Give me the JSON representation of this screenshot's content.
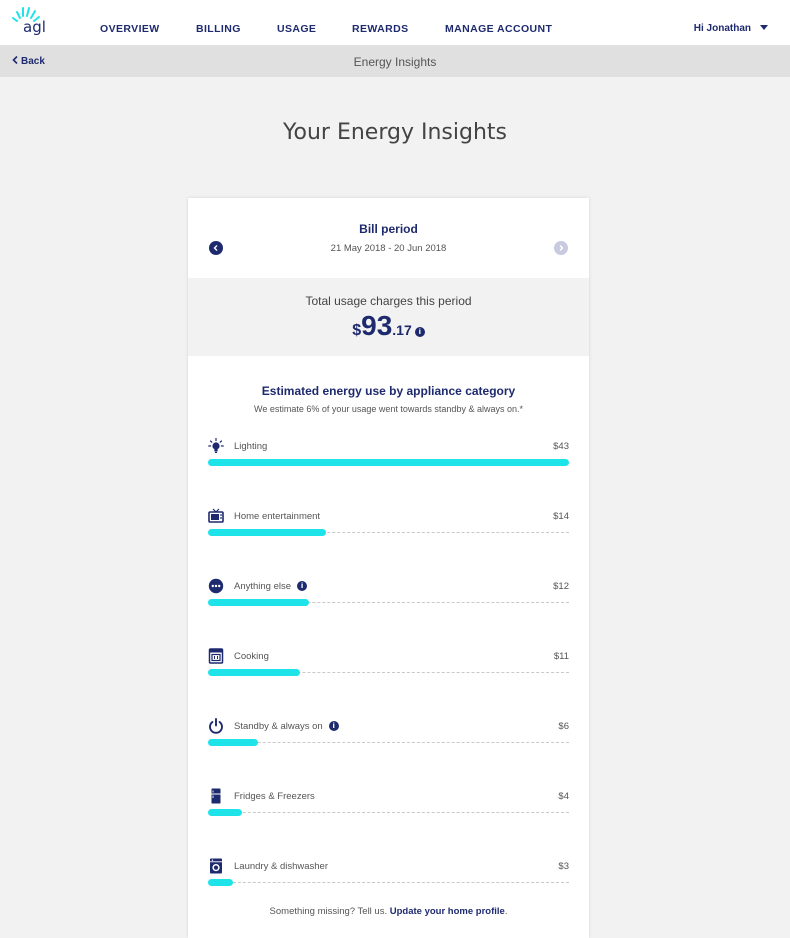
{
  "brand": {
    "logo_text": "agl",
    "accent": "#1ee3e8",
    "primary": "#1e2a6e"
  },
  "nav": {
    "items": [
      "OVERVIEW",
      "BILLING",
      "USAGE",
      "REWARDS",
      "MANAGE ACCOUNT"
    ],
    "user_greeting": "Hi Jonathan"
  },
  "subbar": {
    "back_label": "Back",
    "title": "Energy Insights"
  },
  "page_title": "Your Energy Insights",
  "bill_period": {
    "title": "Bill period",
    "dates": "21 May 2018 - 20 Jun 2018"
  },
  "total": {
    "label": "Total usage charges this period",
    "currency": "$",
    "dollars": "93",
    "cents": ".17"
  },
  "estimate": {
    "title": "Estimated energy use by appliance category",
    "subtitle": "We estimate 6% of your usage went towards standby & always on.*"
  },
  "categories": [
    {
      "label": "Lighting",
      "amount": "$43",
      "value": 43,
      "icon": "bulb-icon",
      "info": false
    },
    {
      "label": "Home entertainment",
      "amount": "$14",
      "value": 14,
      "icon": "tv-icon",
      "info": false
    },
    {
      "label": "Anything else",
      "amount": "$12",
      "value": 12,
      "icon": "more-icon",
      "info": true
    },
    {
      "label": "Cooking",
      "amount": "$11",
      "value": 11,
      "icon": "oven-icon",
      "info": false
    },
    {
      "label": "Standby & always on",
      "amount": "$6",
      "value": 6,
      "icon": "power-icon",
      "info": true
    },
    {
      "label": "Fridges & Freezers",
      "amount": "$4",
      "value": 4,
      "icon": "fridge-icon",
      "info": false
    },
    {
      "label": "Laundry & dishwasher",
      "amount": "$3",
      "value": 3,
      "icon": "washer-icon",
      "info": false
    }
  ],
  "footer": {
    "prefix": "Something missing? Tell us. ",
    "link": "Update your home profile",
    "suffix": "."
  }
}
